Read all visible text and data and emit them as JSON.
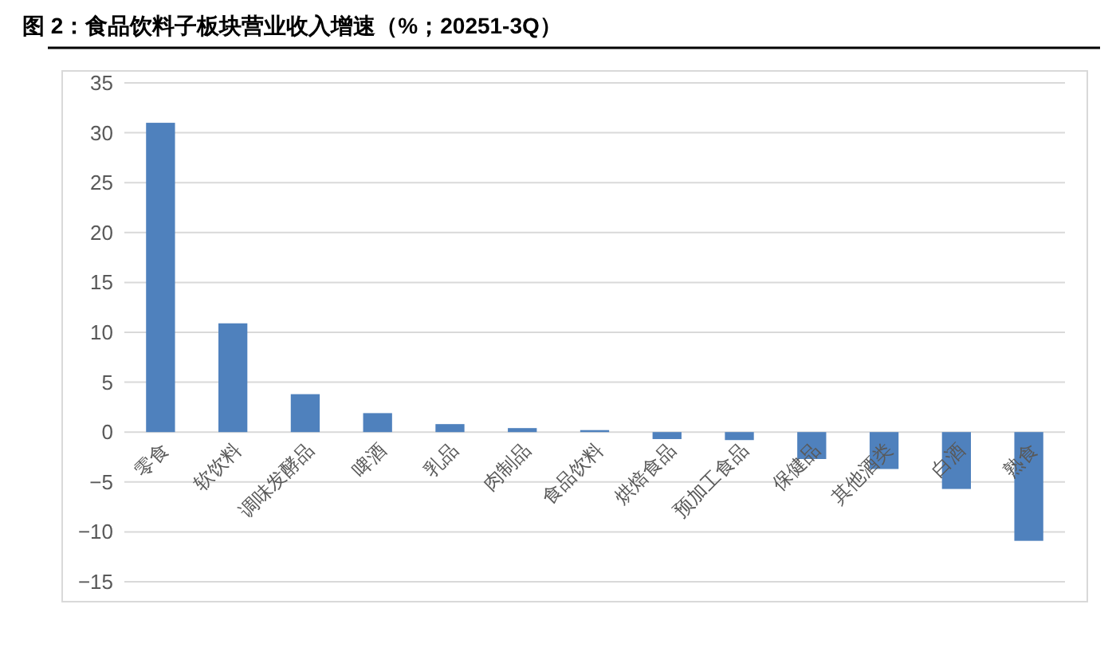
{
  "chart_data": {
    "type": "bar",
    "title": "图 2：食品饮料子板块营业收入增速（%；20251-3Q）",
    "categories": [
      "零食",
      "软饮料",
      "调味发酵品",
      "啤酒",
      "乳品",
      "肉制品",
      "食品饮料",
      "烘焙食品",
      "预加工食品",
      "保健品",
      "其他酒类",
      "白酒",
      "熟食"
    ],
    "values": [
      31,
      10.9,
      3.8,
      1.9,
      0.8,
      0.4,
      0.2,
      -0.7,
      -0.8,
      -2.7,
      -3.7,
      -5.7,
      -10.9
    ],
    "color": "#4f81bd",
    "ylim": [
      -15,
      35
    ],
    "yticks": [
      -15,
      -10,
      -5,
      0,
      5,
      10,
      15,
      20,
      25,
      30,
      35
    ],
    "grid": "y"
  }
}
